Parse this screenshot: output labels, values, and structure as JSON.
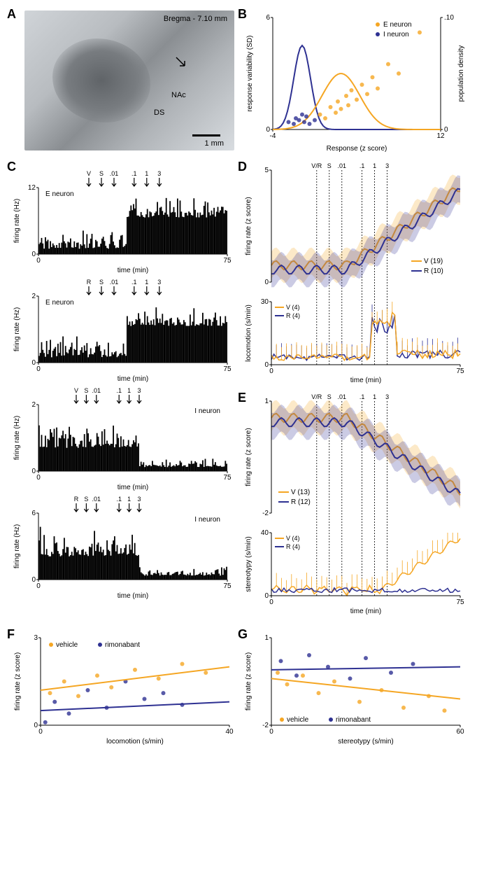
{
  "panelA": {
    "label": "A",
    "title": "Bregma - 7.10 mm",
    "annot_NAc": "NAc",
    "annot_DS": "DS",
    "scale": "1 mm"
  },
  "panelB": {
    "label": "B",
    "ylabel_left": "response variability (SD)",
    "ylabel_right": "population density",
    "xlabel": "Response (z score)",
    "legend_E": "E neuron",
    "legend_I": "I neuron",
    "color_E": "#f5a623",
    "color_I": "#2e3192",
    "xlim": [
      -4,
      12
    ],
    "ylim_left": [
      0,
      6
    ],
    "ylim_right": [
      0,
      0.1
    ],
    "E_points": [
      [
        0.5,
        0.8
      ],
      [
        1,
        0.6
      ],
      [
        1.5,
        1.2
      ],
      [
        2,
        0.9
      ],
      [
        2.2,
        1.5
      ],
      [
        2.5,
        1.1
      ],
      [
        3,
        1.8
      ],
      [
        3.2,
        1.3
      ],
      [
        3.5,
        2.1
      ],
      [
        4,
        1.6
      ],
      [
        4.5,
        2.4
      ],
      [
        5,
        1.9
      ],
      [
        5.5,
        2.8
      ],
      [
        6,
        2.2
      ],
      [
        7,
        3.5
      ],
      [
        8,
        3.0
      ],
      [
        10,
        5.2
      ]
    ],
    "I_points": [
      [
        -2.5,
        0.4
      ],
      [
        -2,
        0.3
      ],
      [
        -1.8,
        0.6
      ],
      [
        -1.5,
        0.5
      ],
      [
        -1.2,
        0.8
      ],
      [
        -1,
        0.4
      ],
      [
        -0.8,
        0.7
      ],
      [
        -0.5,
        0.3
      ],
      [
        0,
        0.5
      ]
    ],
    "E_gauss": {
      "mu": 2.5,
      "sigma": 1.8,
      "amp": 3.0
    },
    "I_gauss": {
      "mu": -1.2,
      "sigma": 0.8,
      "amp": 4.5
    }
  },
  "panelC": {
    "label": "C",
    "xlabel": "time (min)",
    "ylabel": "firing rate (Hz)",
    "xlim": [
      0,
      75
    ],
    "subplots": [
      {
        "tag": "E neuron",
        "ymax": 12,
        "arrows": [
          [
            "V",
            20
          ],
          [
            "S",
            25
          ],
          [
            ".01",
            30
          ],
          [
            ".1",
            38
          ],
          [
            "1",
            43
          ],
          [
            "3",
            48
          ]
        ],
        "pattern": "rising"
      },
      {
        "tag": "E neuron",
        "ymax": 2,
        "arrows": [
          [
            "R",
            20
          ],
          [
            "S",
            25
          ],
          [
            ".01",
            30
          ],
          [
            ".1",
            38
          ],
          [
            "1",
            43
          ],
          [
            "3",
            48
          ]
        ],
        "pattern": "rising"
      },
      {
        "tag": "I neuron",
        "ymax": 2,
        "arrows": [
          [
            "V",
            15
          ],
          [
            "S",
            19
          ],
          [
            ".01",
            23
          ],
          [
            ".1",
            32
          ],
          [
            "1",
            36
          ],
          [
            "3",
            40
          ]
        ],
        "pattern": "falling"
      },
      {
        "tag": "I neuron",
        "ymax": 6,
        "arrows": [
          [
            "R",
            15
          ],
          [
            "S",
            19
          ],
          [
            ".01",
            23
          ],
          [
            ".1",
            32
          ],
          [
            "1",
            36
          ],
          [
            "3",
            40
          ]
        ],
        "pattern": "falling"
      }
    ]
  },
  "panelD": {
    "label": "D",
    "xlabel": "time (min)",
    "ylabel_top": "firing rate (z score)",
    "ylabel_bot": "locomotion (s/min)",
    "xlim": [
      0,
      75
    ],
    "ylim_top": [
      0,
      5
    ],
    "ylim_bot": [
      0,
      30
    ],
    "injections": [
      [
        "V/R",
        18
      ],
      [
        "S",
        23
      ],
      [
        ".01",
        28
      ],
      [
        ".1",
        36
      ],
      [
        "1",
        41
      ],
      [
        "3",
        46
      ]
    ],
    "legend_V": "V (19)",
    "legend_R": "R (10)",
    "legend_V_bot": "V (4)",
    "legend_R_bot": "R (4)",
    "color_V": "#f5a623",
    "color_R": "#2e3192"
  },
  "panelE": {
    "label": "E",
    "xlabel": "time (min)",
    "ylabel_top": "firing rate (z score)",
    "ylabel_bot": "stereotypy (s/min)",
    "xlim": [
      0,
      75
    ],
    "ylim_top": [
      -2,
      1
    ],
    "ylim_bot": [
      0,
      40
    ],
    "injections": [
      [
        "V/R",
        18
      ],
      [
        "S",
        23
      ],
      [
        ".01",
        28
      ],
      [
        ".1",
        36
      ],
      [
        "1",
        41
      ],
      [
        "3",
        46
      ]
    ],
    "legend_V": "V (13)",
    "legend_R": "R (12)",
    "legend_V_bot": "V (4)",
    "legend_R_bot": "R (4)",
    "color_V": "#f5a623",
    "color_R": "#2e3192"
  },
  "panelF": {
    "label": "F",
    "xlabel": "locomotion (s/min)",
    "ylabel": "firing rate (z score)",
    "xlim": [
      0,
      40
    ],
    "ylim": [
      0,
      3
    ],
    "legend_veh": "vehicle",
    "legend_rim": "rimonabant",
    "color_veh": "#f5a623",
    "color_rim": "#2e3192",
    "veh_line": [
      [
        0,
        1.2
      ],
      [
        40,
        2.0
      ]
    ],
    "rim_line": [
      [
        0,
        0.5
      ],
      [
        40,
        0.8
      ]
    ],
    "veh_pts": [
      [
        2,
        1.1
      ],
      [
        5,
        1.5
      ],
      [
        8,
        1.0
      ],
      [
        12,
        1.7
      ],
      [
        15,
        1.3
      ],
      [
        20,
        1.9
      ],
      [
        25,
        1.6
      ],
      [
        30,
        2.1
      ],
      [
        35,
        1.8
      ]
    ],
    "rim_pts": [
      [
        1,
        0.1
      ],
      [
        3,
        0.8
      ],
      [
        6,
        0.4
      ],
      [
        10,
        1.2
      ],
      [
        14,
        0.6
      ],
      [
        18,
        1.5
      ],
      [
        22,
        0.9
      ],
      [
        26,
        1.1
      ],
      [
        30,
        0.7
      ]
    ]
  },
  "panelG": {
    "label": "G",
    "xlabel": "stereotypy (s/min)",
    "ylabel": "firing rate (z score)",
    "xlim": [
      0,
      60
    ],
    "ylim": [
      -2,
      1
    ],
    "legend_veh": "vehicle",
    "legend_rim": "rimonabant",
    "color_veh": "#f5a623",
    "color_rim": "#2e3192",
    "veh_line": [
      [
        0,
        -0.4
      ],
      [
        60,
        -1.1
      ]
    ],
    "rim_line": [
      [
        0,
        -0.1
      ],
      [
        60,
        0.0
      ]
    ],
    "veh_pts": [
      [
        2,
        -0.2
      ],
      [
        5,
        -0.6
      ],
      [
        10,
        -0.3
      ],
      [
        15,
        -0.9
      ],
      [
        20,
        -0.5
      ],
      [
        28,
        -1.2
      ],
      [
        35,
        -0.8
      ],
      [
        42,
        -1.4
      ],
      [
        50,
        -1.0
      ],
      [
        55,
        -1.5
      ]
    ],
    "rim_pts": [
      [
        3,
        0.2
      ],
      [
        8,
        -0.3
      ],
      [
        12,
        0.4
      ],
      [
        18,
        0.0
      ],
      [
        25,
        -0.4
      ],
      [
        30,
        0.3
      ],
      [
        38,
        -0.2
      ],
      [
        45,
        0.1
      ]
    ]
  }
}
